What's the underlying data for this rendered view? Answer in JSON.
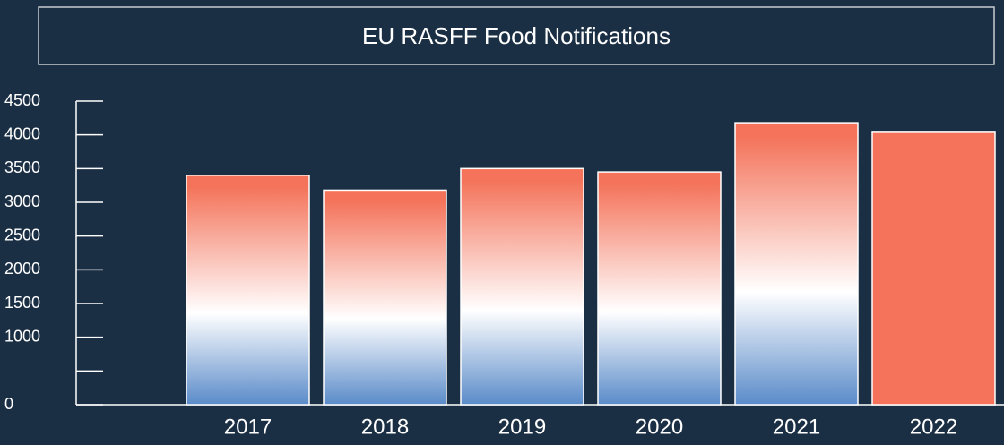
{
  "chart_data": {
    "type": "bar",
    "title": "EU RASFF Food Notifications",
    "categories": [
      "2017",
      "2018",
      "2019",
      "2020",
      "2021",
      "2022"
    ],
    "values": [
      3400,
      3180,
      3500,
      3450,
      4180,
      4050
    ],
    "colors": [
      "gradient",
      "gradient",
      "gradient",
      "gradient",
      "gradient",
      "#f4735a"
    ],
    "gradient_stops": [
      "#f4735a",
      "#ffffff",
      "#5a8bc9"
    ],
    "ylim": [
      0,
      4500
    ],
    "yticks": [
      0,
      {
        "value": 500,
        "label": null
      },
      1000,
      1500,
      2000,
      2500,
      3000,
      3500,
      4000,
      4500
    ]
  }
}
